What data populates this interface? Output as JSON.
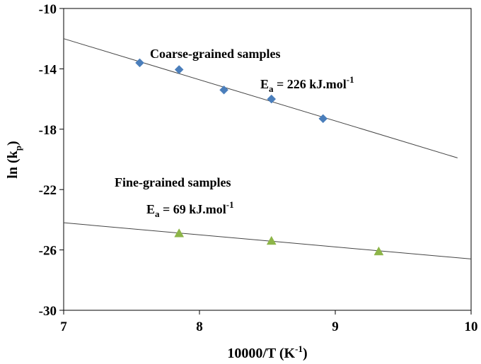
{
  "chart_data": {
    "type": "scatter",
    "xlabel": {
      "main": "10000/T (K",
      "sup": "-1",
      "tail": ")"
    },
    "ylabel": {
      "main": "ln (k",
      "sub": "p",
      "tail": ")"
    },
    "xlim": [
      7,
      10
    ],
    "ylim": [
      -30,
      -10
    ],
    "xticks": [
      7,
      8,
      9,
      10
    ],
    "yticks": [
      -10,
      -14,
      -18,
      -22,
      -26,
      -30
    ],
    "grid": false,
    "series": [
      {
        "name": "Coarse-grained samples",
        "marker": "diamond",
        "color": "#4a7ebb",
        "x": [
          7.56,
          7.85,
          8.18,
          8.53,
          8.91
        ],
        "y": [
          -13.6,
          -14.05,
          -15.4,
          -16.0,
          -17.3
        ],
        "fit": {
          "x": [
            7.0,
            9.9
          ],
          "y": [
            -12.0,
            -19.9
          ]
        }
      },
      {
        "name": "Fine-grained samples",
        "marker": "triangle",
        "color": "#8db548",
        "x": [
          7.85,
          8.53,
          9.32
        ],
        "y": [
          -24.9,
          -25.4,
          -26.1
        ],
        "fit": {
          "x": [
            7.0,
            10.0
          ],
          "y": [
            -24.2,
            -26.6
          ]
        }
      }
    ],
    "annotations": [
      {
        "id": "coarse-title",
        "text": "Coarse-grained samples"
      },
      {
        "id": "coarse-ea",
        "main": "E",
        "sub": "a",
        "mid": " = 226 kJ.mol",
        "sup": "-1"
      },
      {
        "id": "fine-title",
        "text": "Fine-grained samples"
      },
      {
        "id": "fine-ea",
        "main": "E",
        "sub": "a",
        "mid": " = 69 kJ.mol",
        "sup": "-1"
      }
    ]
  }
}
